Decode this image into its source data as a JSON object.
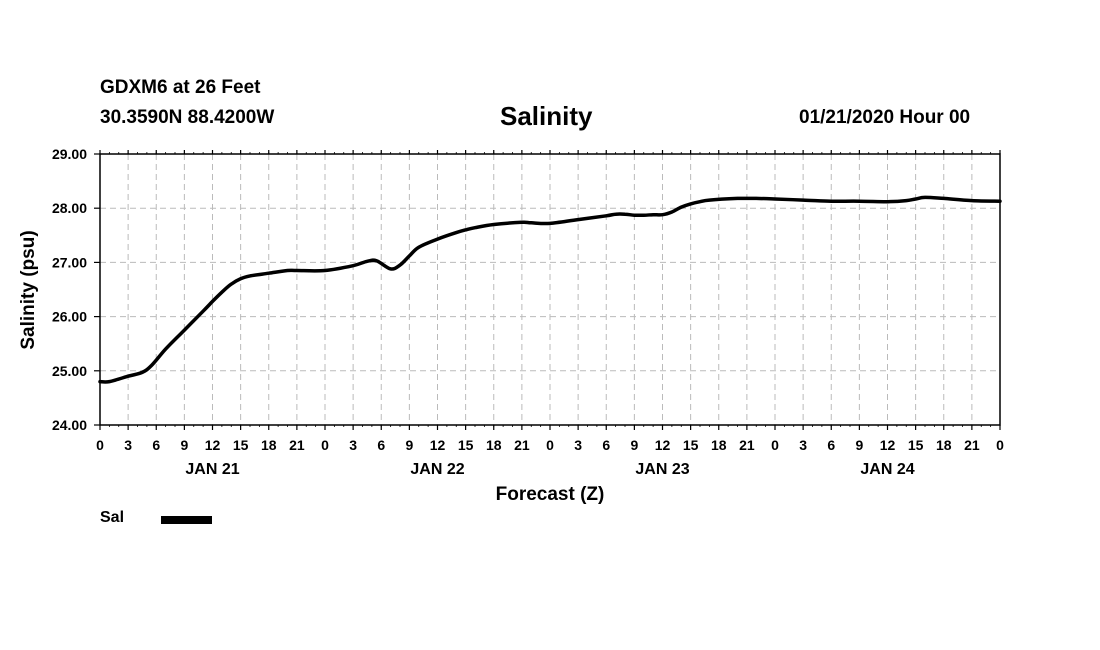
{
  "header": {
    "station": "GDXM6 at 26 Feet",
    "location": "30.3590N 88.4200W",
    "title": "Salinity",
    "datetime": "01/21/2020 Hour 00"
  },
  "legend": {
    "label": "Sal",
    "color": "#000000"
  },
  "chart_data": {
    "type": "line",
    "title": "Salinity",
    "xlabel": "Forecast (Z)",
    "ylabel": "Salinity (psu)",
    "ylim": [
      24.0,
      29.0
    ],
    "xlim_hours": [
      0,
      96
    ],
    "yticks": [
      "24.00",
      "25.00",
      "26.00",
      "27.00",
      "28.00",
      "29.00"
    ],
    "xtick_labels": [
      "0",
      "3",
      "6",
      "9",
      "12",
      "15",
      "18",
      "21",
      "0",
      "3",
      "6",
      "9",
      "12",
      "15",
      "18",
      "21",
      "0",
      "3",
      "6",
      "9",
      "12",
      "15",
      "18",
      "21",
      "0",
      "3",
      "6",
      "9",
      "12",
      "15",
      "18",
      "21",
      "0"
    ],
    "day_labels": [
      {
        "hour": 12,
        "label": "JAN 21"
      },
      {
        "hour": 36,
        "label": "JAN 22"
      },
      {
        "hour": 60,
        "label": "JAN 23"
      },
      {
        "hour": 84,
        "label": "JAN 24"
      }
    ],
    "grid": true,
    "series": [
      {
        "name": "Sal",
        "color": "#000000",
        "x_hours": [
          0,
          1,
          3,
          4.5,
          5.5,
          7,
          9,
          11,
          12,
          13,
          14,
          15,
          16,
          18,
          20,
          21,
          24,
          27,
          28.5,
          29.5,
          31,
          32,
          33,
          34,
          36,
          38,
          39,
          40,
          42,
          45,
          46,
          48,
          51,
          54,
          55,
          56,
          57,
          58,
          59,
          60,
          61,
          62,
          63,
          64,
          65,
          68,
          70,
          72,
          75,
          78,
          81,
          84,
          86,
          87,
          88,
          90,
          93,
          96
        ],
        "values": [
          24.8,
          24.8,
          24.9,
          24.97,
          25.1,
          25.4,
          25.75,
          26.1,
          26.28,
          26.45,
          26.6,
          26.7,
          26.75,
          26.8,
          26.85,
          26.85,
          26.85,
          26.94,
          27.02,
          27.03,
          26.88,
          26.95,
          27.12,
          27.28,
          27.43,
          27.55,
          27.6,
          27.64,
          27.7,
          27.74,
          27.73,
          27.72,
          27.79,
          27.86,
          27.89,
          27.89,
          27.87,
          27.87,
          27.88,
          27.88,
          27.93,
          28.02,
          28.08,
          28.12,
          28.15,
          28.18,
          28.18,
          28.17,
          28.15,
          28.13,
          28.13,
          28.12,
          28.14,
          28.17,
          28.2,
          28.18,
          28.14,
          28.13
        ]
      }
    ]
  }
}
